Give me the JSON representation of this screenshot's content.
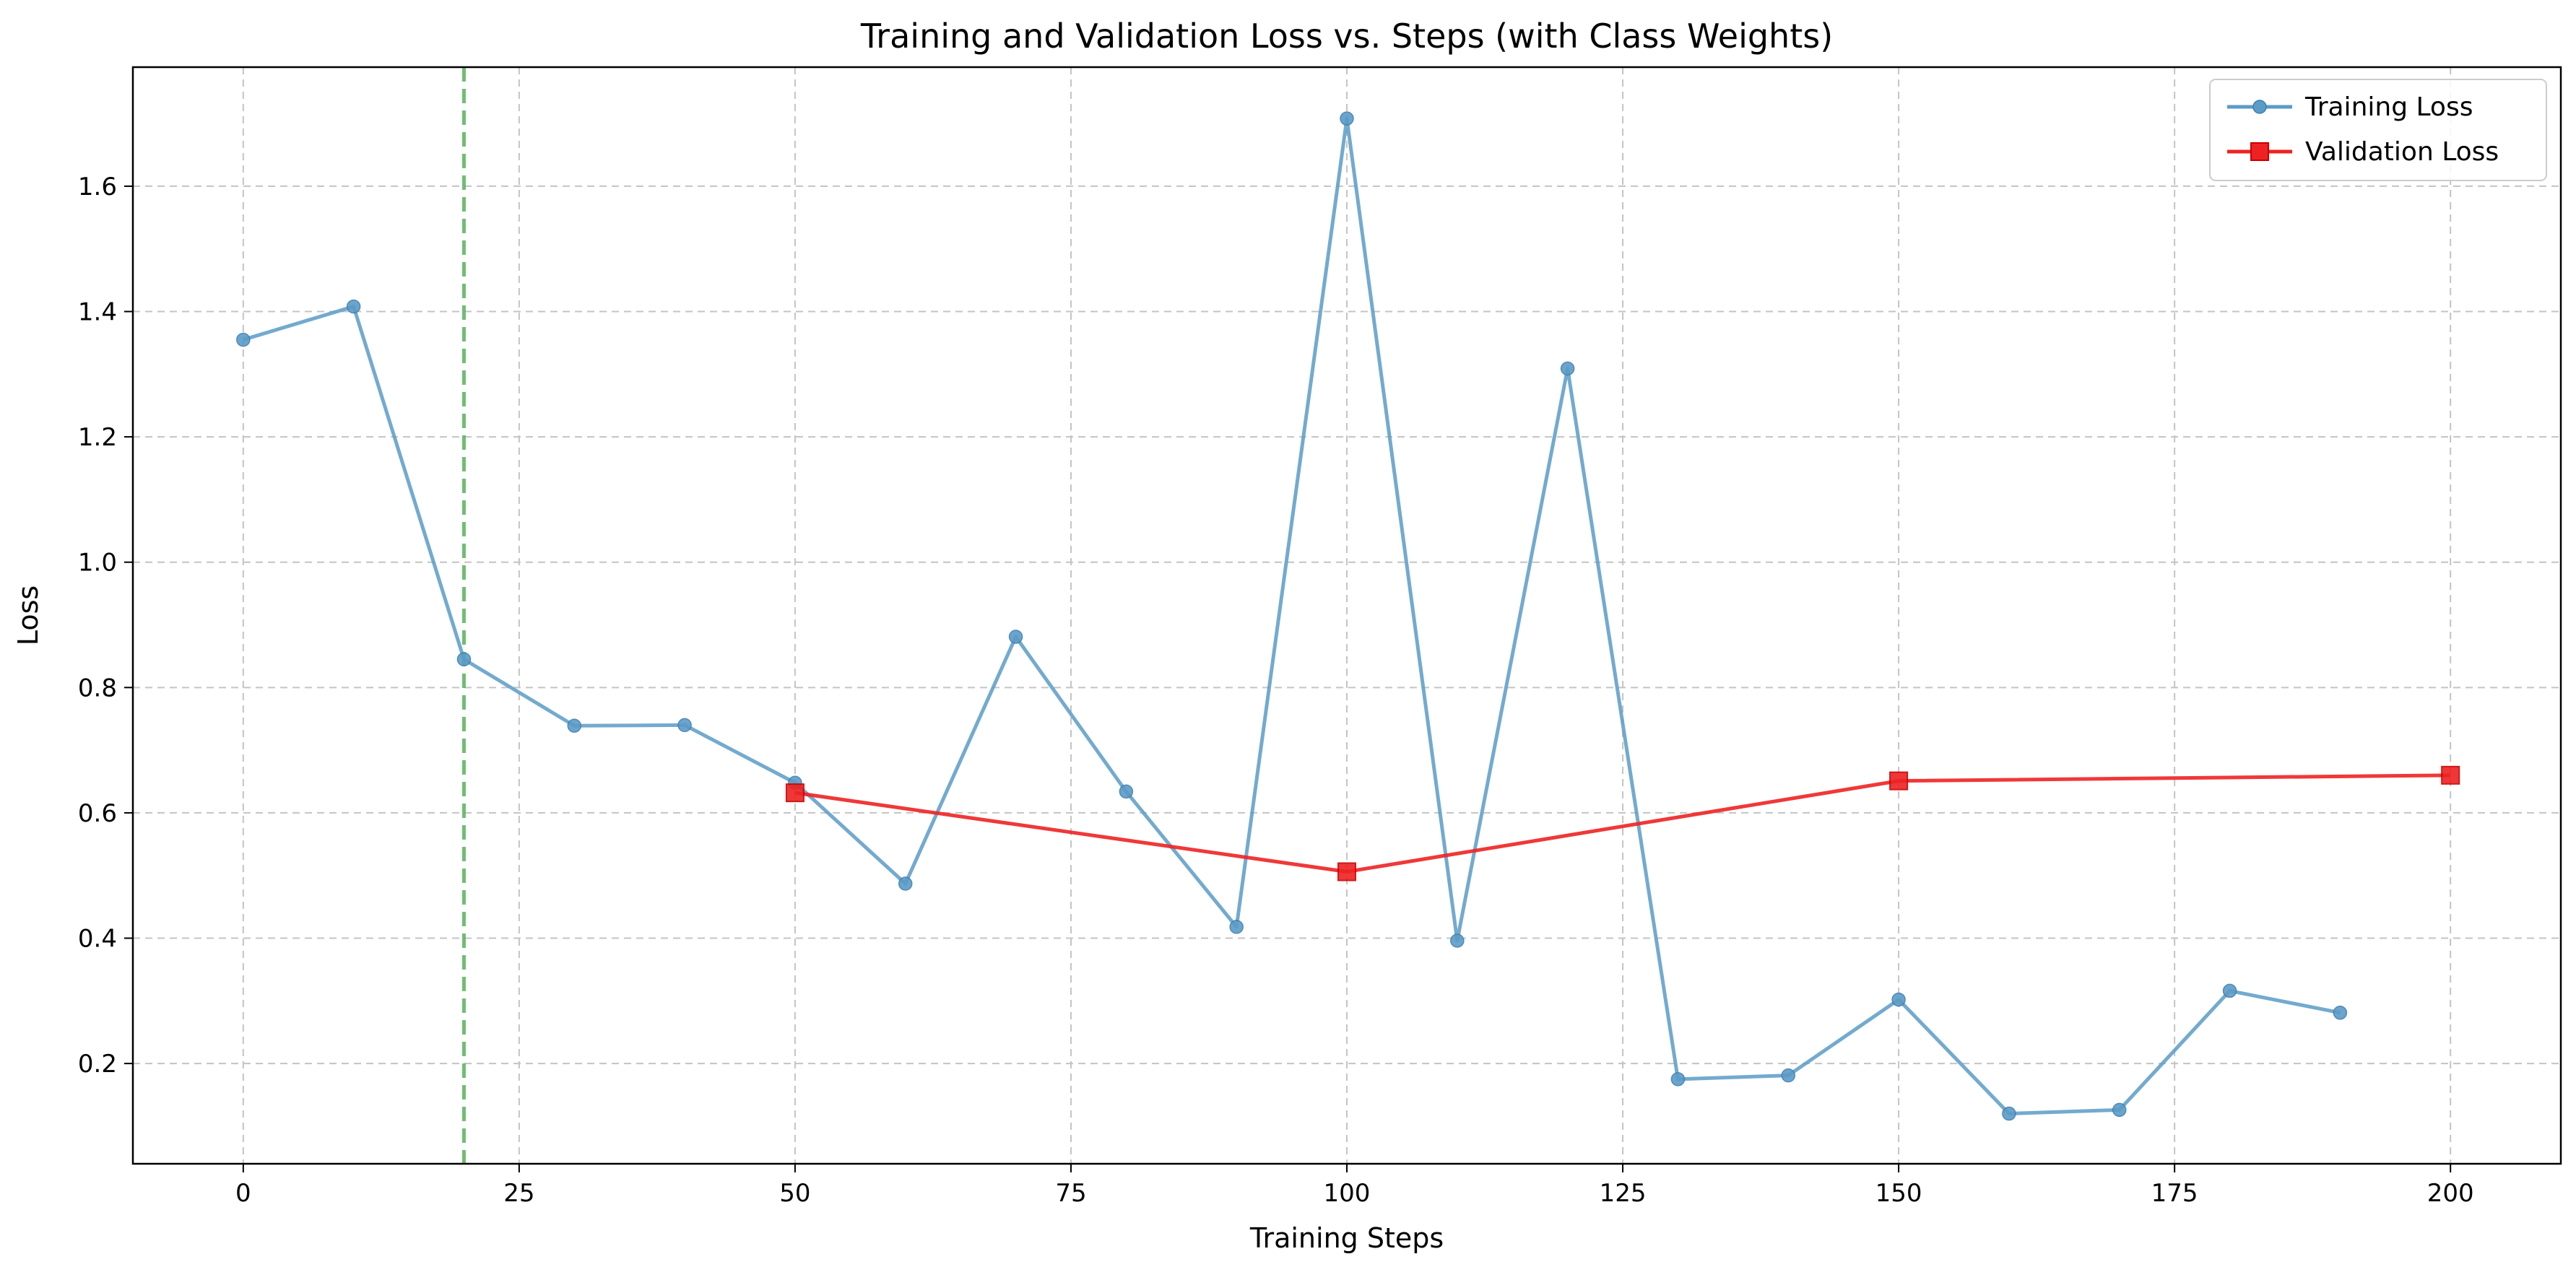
{
  "chart_data": {
    "type": "line",
    "title": "Training and Validation Loss vs. Steps (with Class Weights)",
    "xlabel": "Training Steps",
    "ylabel": "Loss",
    "xlim": [
      -10,
      210
    ],
    "ylim": [
      0.04,
      1.79
    ],
    "xticks": [
      0,
      25,
      50,
      75,
      100,
      125,
      150,
      175,
      200
    ],
    "yticks": [
      0.2,
      0.4,
      0.6,
      0.8,
      1.0,
      1.2,
      1.4,
      1.6
    ],
    "xtick_labels": [
      "0",
      "25",
      "50",
      "75",
      "100",
      "125",
      "150",
      "175",
      "200"
    ],
    "ytick_labels": [
      "0.2",
      "0.4",
      "0.6",
      "0.8",
      "1.0",
      "1.2",
      "1.4",
      "1.6"
    ],
    "grid": true,
    "legend_position": "top-right",
    "vline": {
      "x": 20,
      "color": "#4caf50",
      "style": "dashed"
    },
    "series": [
      {
        "name": "Training Loss",
        "color": "#5b9bc7",
        "marker": "circle",
        "x": [
          0,
          10,
          20,
          30,
          40,
          50,
          60,
          70,
          80,
          90,
          100,
          110,
          120,
          130,
          140,
          150,
          160,
          170,
          180,
          190
        ],
        "values": [
          1.355,
          1.408,
          0.845,
          0.739,
          0.74,
          0.648,
          0.487,
          0.881,
          0.634,
          0.418,
          1.708,
          0.396,
          1.309,
          0.175,
          0.181,
          0.302,
          0.12,
          0.126,
          0.316,
          0.281
        ]
      },
      {
        "name": "Validation Loss",
        "color": "#ee2222",
        "marker": "square",
        "x": [
          50,
          100,
          150,
          200
        ],
        "values": [
          0.632,
          0.506,
          0.651,
          0.66
        ]
      }
    ]
  }
}
